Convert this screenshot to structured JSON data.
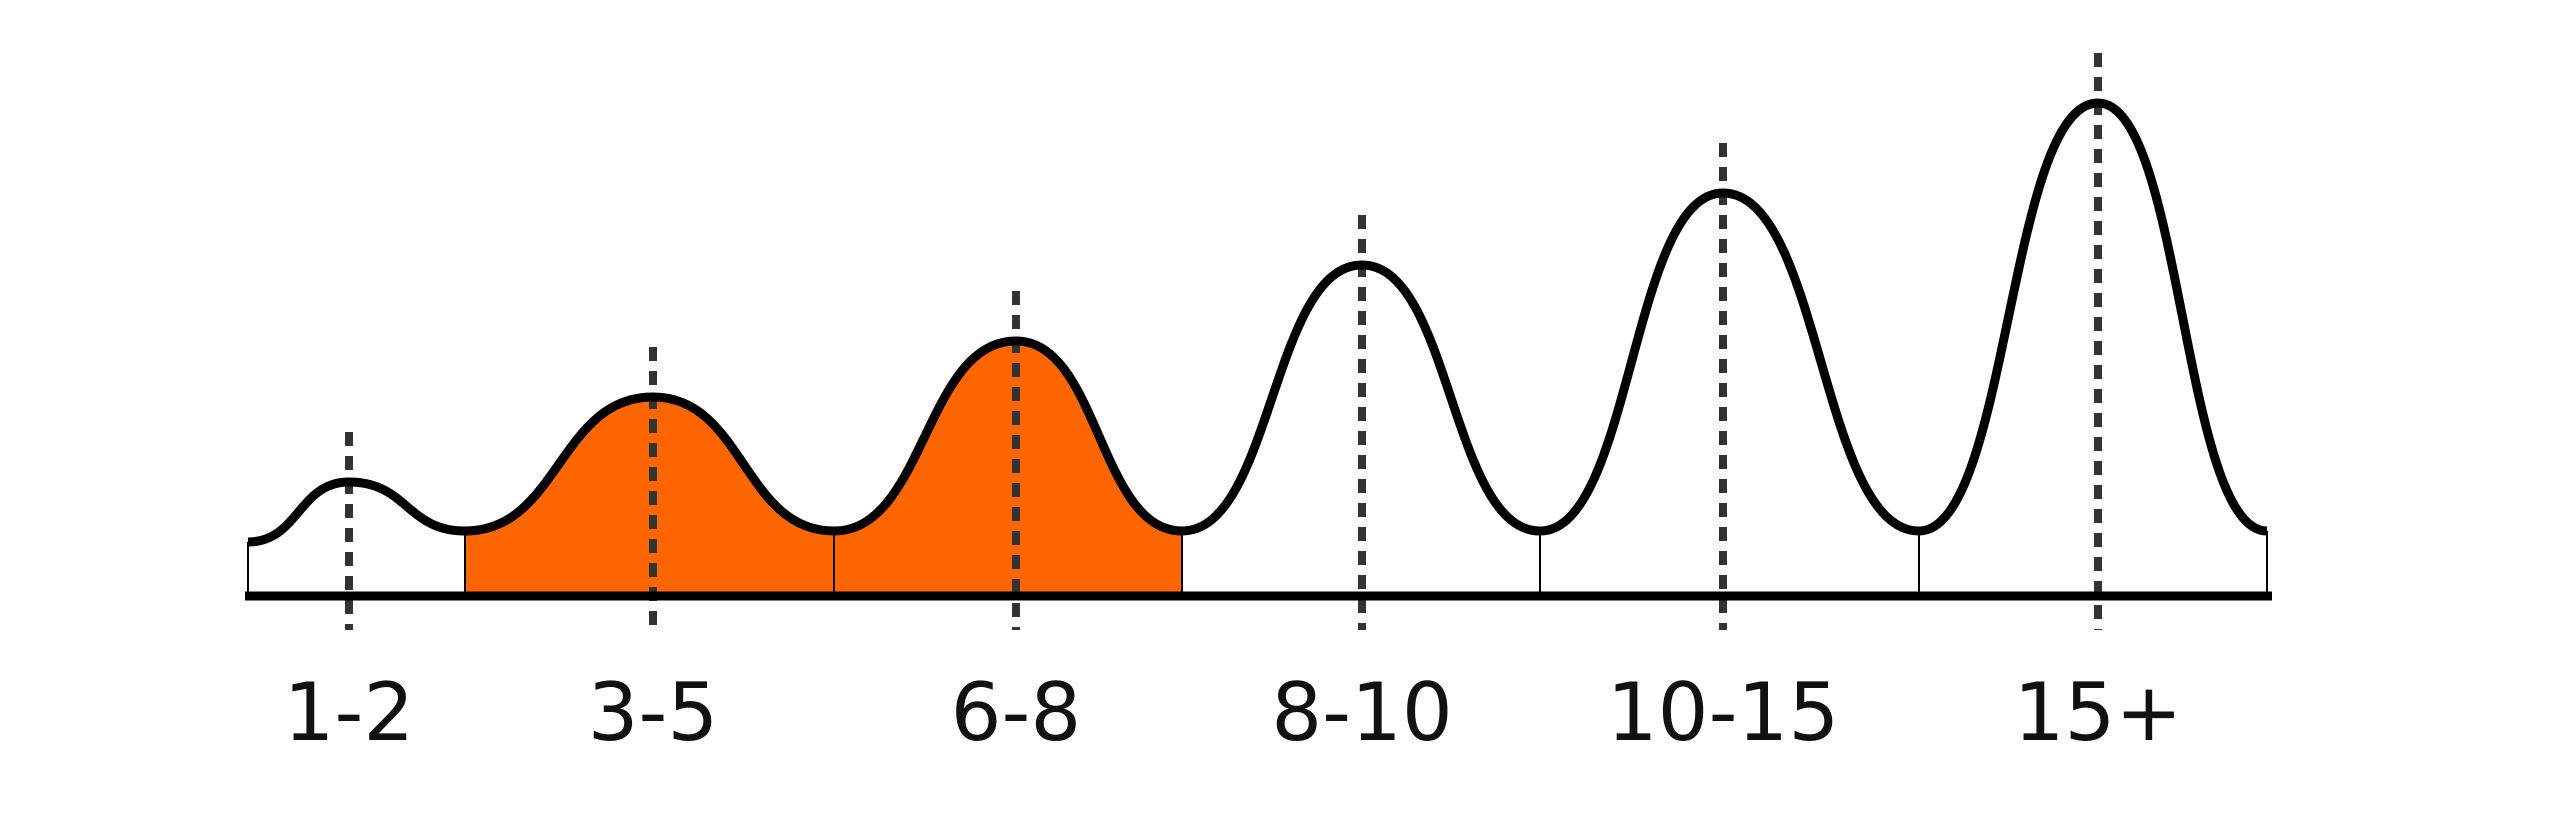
{
  "labels": [
    "1-2",
    "3-5",
    "6-8",
    "8-10",
    "10-15",
    "15+"
  ]
}
